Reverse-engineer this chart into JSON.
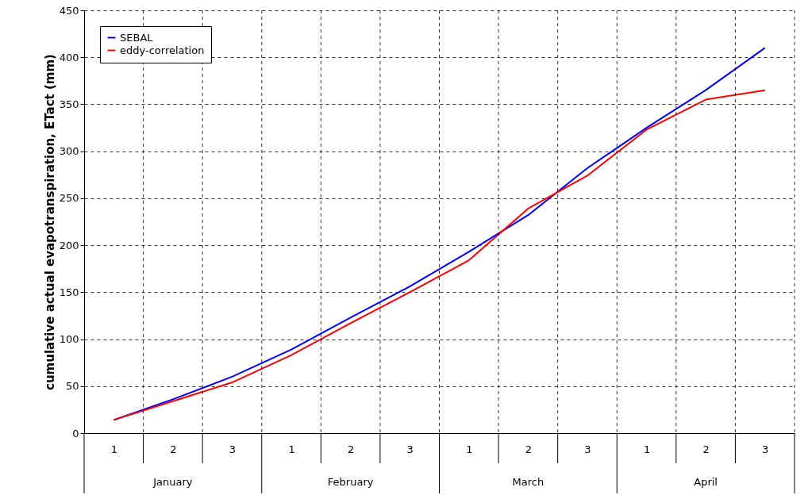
{
  "chart_data": {
    "type": "line",
    "ylabel": "cumulative actual evapotranspiration, ETact  (mm)",
    "categories": [
      "1",
      "2",
      "3",
      "1",
      "2",
      "3",
      "1",
      "2",
      "3",
      "1",
      "2",
      "3"
    ],
    "series": [
      {
        "name": "SEBAL",
        "color": "#0000ff",
        "values": [
          14,
          36,
          60,
          89,
          123,
          156,
          193,
          232,
          282,
          325,
          365,
          410
        ]
      },
      {
        "name": "eddy-correlation",
        "color": "#ff0000",
        "values": [
          14,
          34,
          54,
          83,
          117,
          150,
          184,
          239,
          274,
          323,
          355,
          365
        ]
      }
    ],
    "annotations": [
      "January",
      "February",
      "March",
      "April"
    ],
    "ylim": [
      0,
      450
    ],
    "yticks": [
      0,
      50,
      100,
      150,
      200,
      250,
      300,
      350,
      400,
      450
    ],
    "grid": true,
    "legend": "top left",
    "marker": "none",
    "line_style": "solid"
  }
}
